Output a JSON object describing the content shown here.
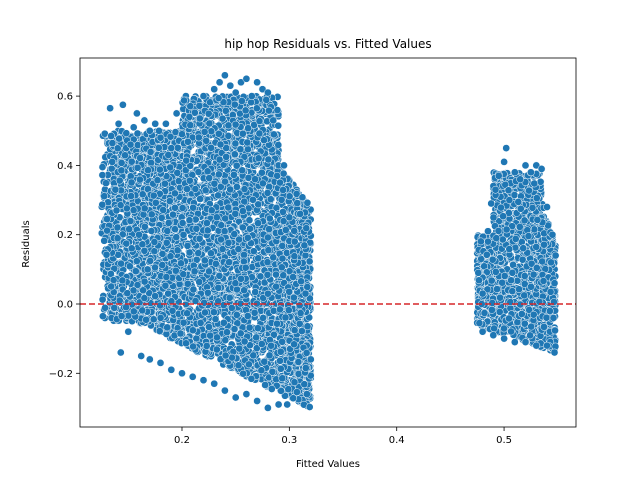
{
  "chart_data": {
    "type": "scatter",
    "title": "hip hop Residuals vs. Fitted Values",
    "xlabel": "Fitted Values",
    "ylabel": "Residuals",
    "xlim": [
      0.105,
      0.567
    ],
    "ylim": [
      -0.355,
      0.71
    ],
    "xticks": [
      0.2,
      0.3,
      0.4,
      0.5
    ],
    "xtick_labels": [
      "0.2",
      "0.3",
      "0.4",
      "0.5"
    ],
    "yticks": [
      -0.2,
      0.0,
      0.2,
      0.4,
      0.6
    ],
    "ytick_labels": [
      "−0.2",
      "0.0",
      "0.2",
      "0.4",
      "0.6"
    ],
    "grid": false,
    "marker_color": "#1f77b4",
    "marker_edge_color": "#ffffff",
    "reference_line": {
      "y": 0.0,
      "color": "#d62728",
      "style": "dashed"
    },
    "series": [
      {
        "clusters": [
          {
            "x_range": [
              0.125,
              0.32
            ],
            "residual_range": [
              -0.3,
              0.66
            ]
          },
          {
            "x_range": [
              0.475,
              0.548
            ],
            "residual_range": [
              -0.14,
              0.45
            ]
          }
        ],
        "points": [
          [
            0.126,
            0.395
          ],
          [
            0.133,
            0.565
          ],
          [
            0.134,
            0.485
          ],
          [
            0.135,
            0.41
          ],
          [
            0.138,
            0.33
          ],
          [
            0.139,
            0.27
          ],
          [
            0.14,
            0.19
          ],
          [
            0.141,
            0.52
          ],
          [
            0.142,
            0.01
          ],
          [
            0.143,
            -0.14
          ],
          [
            0.145,
            0.575
          ],
          [
            0.148,
            0.45
          ],
          [
            0.15,
            -0.08
          ],
          [
            0.152,
            0.46
          ],
          [
            0.155,
            0.51
          ],
          [
            0.158,
            0.55
          ],
          [
            0.16,
            0.2
          ],
          [
            0.162,
            -0.15
          ],
          [
            0.165,
            0.53
          ],
          [
            0.168,
            0.1
          ],
          [
            0.17,
            0.5
          ],
          [
            0.175,
            0.52
          ],
          [
            0.18,
            0.48
          ],
          [
            0.185,
            0.52
          ],
          [
            0.19,
            0.45
          ],
          [
            0.195,
            0.55
          ],
          [
            0.2,
            0.49
          ],
          [
            0.22,
            0.6
          ],
          [
            0.23,
            0.62
          ],
          [
            0.235,
            0.64
          ],
          [
            0.24,
            0.66
          ],
          [
            0.245,
            0.63
          ],
          [
            0.25,
            0.61
          ],
          [
            0.255,
            0.64
          ],
          [
            0.26,
            0.65
          ],
          [
            0.265,
            0.6
          ],
          [
            0.27,
            0.64
          ],
          [
            0.275,
            0.62
          ],
          [
            0.28,
            0.61
          ],
          [
            0.285,
            0.53
          ],
          [
            0.29,
            0.4
          ],
          [
            0.295,
            0.4
          ],
          [
            0.3,
            0.25
          ],
          [
            0.305,
            0.18
          ],
          [
            0.31,
            0.26
          ],
          [
            0.315,
            0.03
          ],
          [
            0.32,
            -0.16
          ],
          [
            0.298,
            -0.29
          ],
          [
            0.29,
            -0.29
          ],
          [
            0.28,
            -0.3
          ],
          [
            0.27,
            -0.28
          ],
          [
            0.26,
            -0.26
          ],
          [
            0.25,
            -0.27
          ],
          [
            0.24,
            -0.25
          ],
          [
            0.23,
            -0.23
          ],
          [
            0.22,
            -0.22
          ],
          [
            0.21,
            -0.21
          ],
          [
            0.2,
            -0.2
          ],
          [
            0.19,
            -0.19
          ],
          [
            0.18,
            -0.17
          ],
          [
            0.17,
            -0.16
          ],
          [
            0.476,
            0.09
          ],
          [
            0.477,
            -0.055
          ],
          [
            0.48,
            0.03
          ],
          [
            0.485,
            0.21
          ],
          [
            0.488,
            0.29
          ],
          [
            0.492,
            0.33
          ],
          [
            0.495,
            0.37
          ],
          [
            0.5,
            0.41
          ],
          [
            0.502,
            0.45
          ],
          [
            0.505,
            0.3
          ],
          [
            0.51,
            0.38
          ],
          [
            0.515,
            0.36
          ],
          [
            0.52,
            0.4
          ],
          [
            0.525,
            0.38
          ],
          [
            0.53,
            0.4
          ],
          [
            0.535,
            0.39
          ],
          [
            0.54,
            0.28
          ],
          [
            0.545,
            0.2
          ],
          [
            0.548,
            0.14
          ],
          [
            0.547,
            0.06
          ],
          [
            0.546,
            -0.04
          ],
          [
            0.547,
            -0.14
          ],
          [
            0.54,
            -0.12
          ],
          [
            0.53,
            -0.12
          ],
          [
            0.52,
            -0.11
          ],
          [
            0.51,
            -0.11
          ],
          [
            0.5,
            -0.1
          ],
          [
            0.49,
            -0.09
          ],
          [
            0.48,
            -0.08
          ]
        ]
      }
    ]
  }
}
